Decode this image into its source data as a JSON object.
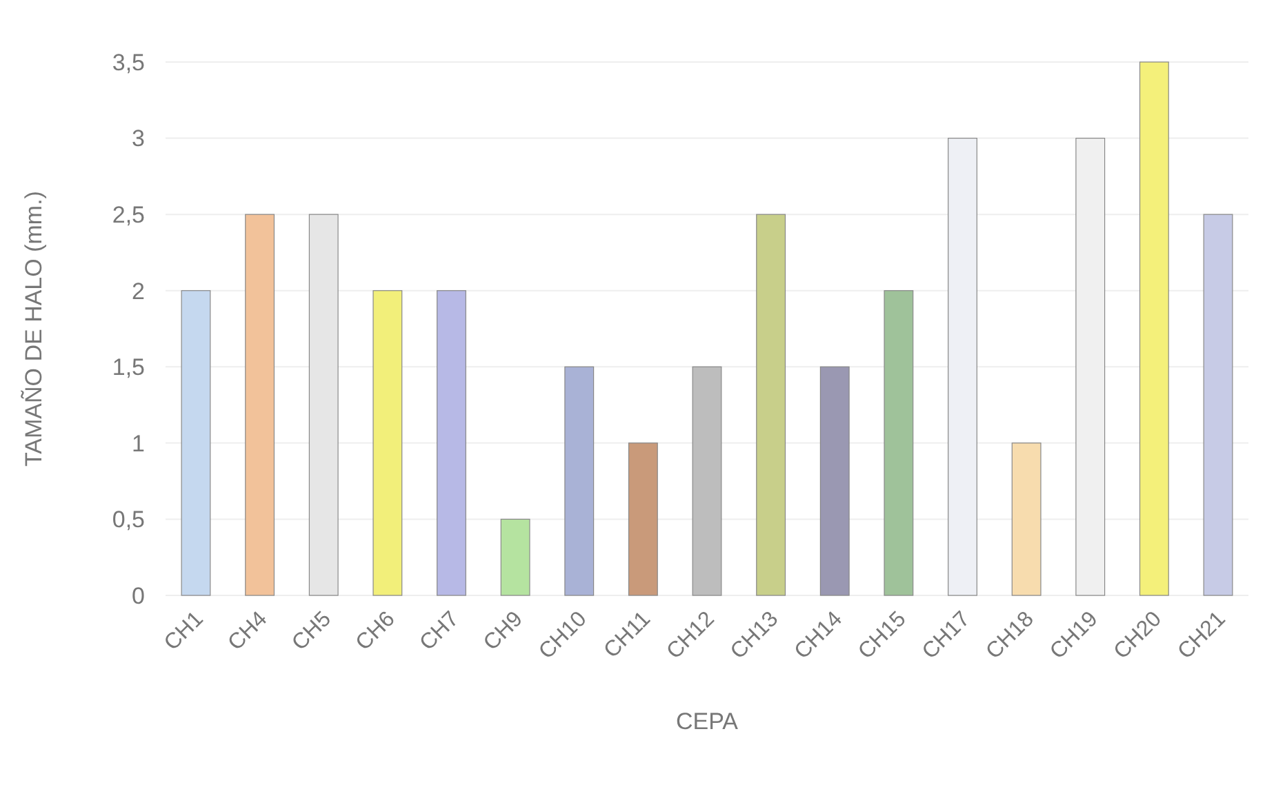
{
  "chart_data": {
    "type": "bar",
    "xlabel": "CEPA",
    "ylabel": "TAMAÑO DE HALO (mm.)",
    "categories": [
      "CH1",
      "CH4",
      "CH5",
      "CH6",
      "CH7",
      "CH9",
      "CH10",
      "CH11",
      "CH12",
      "CH13",
      "CH14",
      "CH15",
      "CH17",
      "CH18",
      "CH19",
      "CH20",
      "CH21"
    ],
    "values": [
      2,
      2.5,
      2.5,
      2,
      2,
      0.5,
      1.5,
      1,
      1.5,
      2.5,
      1.5,
      2,
      3,
      1,
      3,
      3.5,
      2.5
    ],
    "colors": [
      "#c5d8ef",
      "#f2c29a",
      "#e6e6e6",
      "#f2ef7a",
      "#b7b9e6",
      "#b5e3a0",
      "#a9b2d6",
      "#c99a7a",
      "#bdbdbd",
      "#c8cf8a",
      "#9a98b2",
      "#9fc29a",
      "#eef0f5",
      "#f7dcae",
      "#f0f0f0",
      "#f4f07a",
      "#c7cbe6"
    ],
    "ylim": [
      0,
      3.5
    ],
    "yticks": [
      0,
      {
        "value": 0.5,
        "label": "0,5"
      },
      1,
      {
        "value": 1.5,
        "label": "1,5"
      },
      2,
      {
        "value": 2.5,
        "label": "2,5"
      },
      3,
      {
        "value": 3.5,
        "label": "3,5"
      }
    ],
    "grid": "y"
  }
}
